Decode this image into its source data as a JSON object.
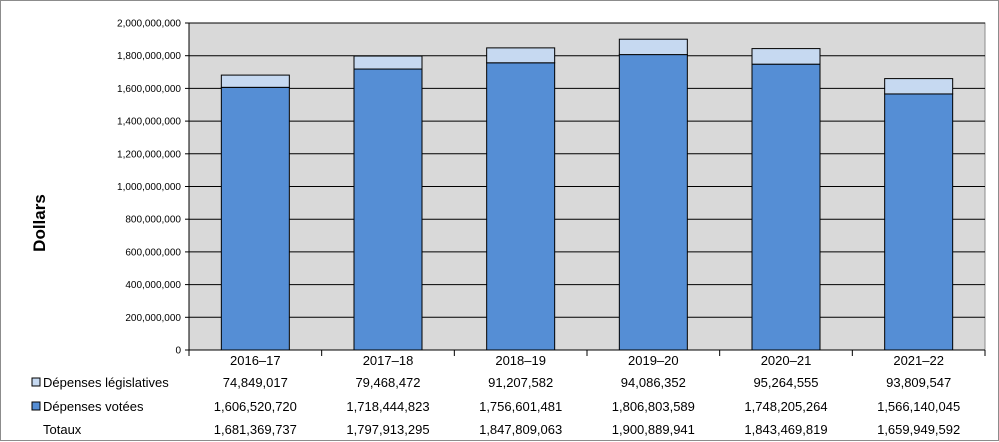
{
  "chart_data": {
    "type": "bar",
    "stacked": true,
    "ylabel": "Dollars",
    "ylim": [
      0,
      2000000000
    ],
    "yticks": [
      0,
      200000000,
      400000000,
      600000000,
      800000000,
      1000000000,
      1200000000,
      1400000000,
      1600000000,
      1800000000,
      2000000000
    ],
    "ytick_labels": [
      "0",
      "200,000,000",
      "400,000,000",
      "600,000,000",
      "800,000,000",
      "1,000,000,000",
      "1,200,000,000",
      "1,400,000,000",
      "1,600,000,000",
      "1,800,000,000",
      "2,000,000,000"
    ],
    "grid": true,
    "categories": [
      "2016–17",
      "2017–18",
      "2018–19",
      "2019–20",
      "2020–21",
      "2021–22"
    ],
    "series": [
      {
        "name": "Dépenses votées",
        "color": "#558ed5",
        "values": [
          1606520720,
          1718444823,
          1756601481,
          1806803589,
          1748205264,
          1566140045
        ],
        "labels": [
          "1,606,520,720",
          "1,718,444,823",
          "1,756,601,481",
          "1,806,803,589",
          "1,748,205,264",
          "1,566,140,045"
        ]
      },
      {
        "name": "Dépenses législatives",
        "color": "#c6d9f1",
        "values": [
          74849017,
          79468472,
          91207582,
          94086352,
          95264555,
          93809547
        ],
        "labels": [
          "74,849,017",
          "79,468,472",
          "91,207,582",
          "94,086,352",
          "95,264,555",
          "93,809,547"
        ]
      }
    ],
    "totals": {
      "name": "Totaux",
      "values": [
        1681369737,
        1797913295,
        1847809063,
        1900889941,
        1843469819,
        1659949592
      ],
      "labels": [
        "1,681,369,737",
        "1,797,913,295",
        "1,847,809,063",
        "1,900,889,941",
        "1,843,469,819",
        "1,659,949,592"
      ]
    },
    "plot_background": "#d9d9d9",
    "legend": "table-below"
  }
}
